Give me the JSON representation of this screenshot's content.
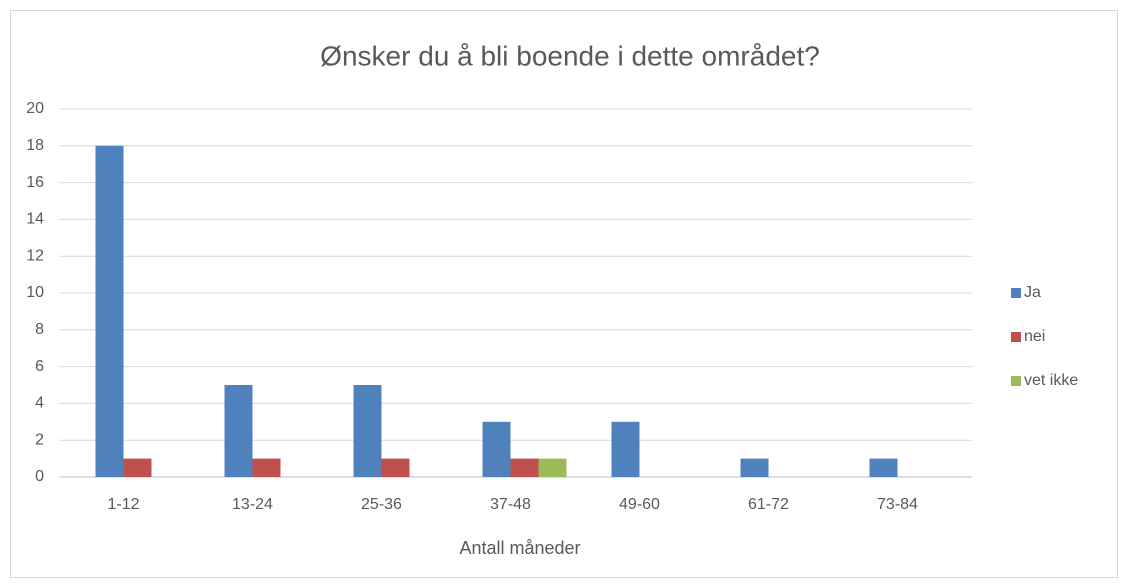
{
  "chart_data": {
    "type": "bar",
    "title": "Ønsker du å bli boende i dette området?",
    "x_label": "Antall måneder",
    "categories": [
      "1-12",
      "13-24",
      "25-36",
      "37-48",
      "49-60",
      "61-72",
      "73-84"
    ],
    "series": [
      {
        "name": "Ja",
        "color": "#4f81bd",
        "values": [
          18,
          5,
          5,
          3,
          3,
          1,
          1
        ]
      },
      {
        "name": "nei",
        "color": "#c0504d",
        "values": [
          1,
          1,
          1,
          1,
          0,
          0,
          0
        ]
      },
      {
        "name": "vet ikke",
        "color": "#9bbb59",
        "values": [
          0,
          0,
          0,
          1,
          0,
          0,
          0
        ]
      }
    ],
    "ylim": [
      0,
      20
    ],
    "yticks": [
      0,
      2,
      4,
      6,
      8,
      10,
      12,
      14,
      16,
      18,
      20
    ],
    "grid": true,
    "legend": "right"
  }
}
